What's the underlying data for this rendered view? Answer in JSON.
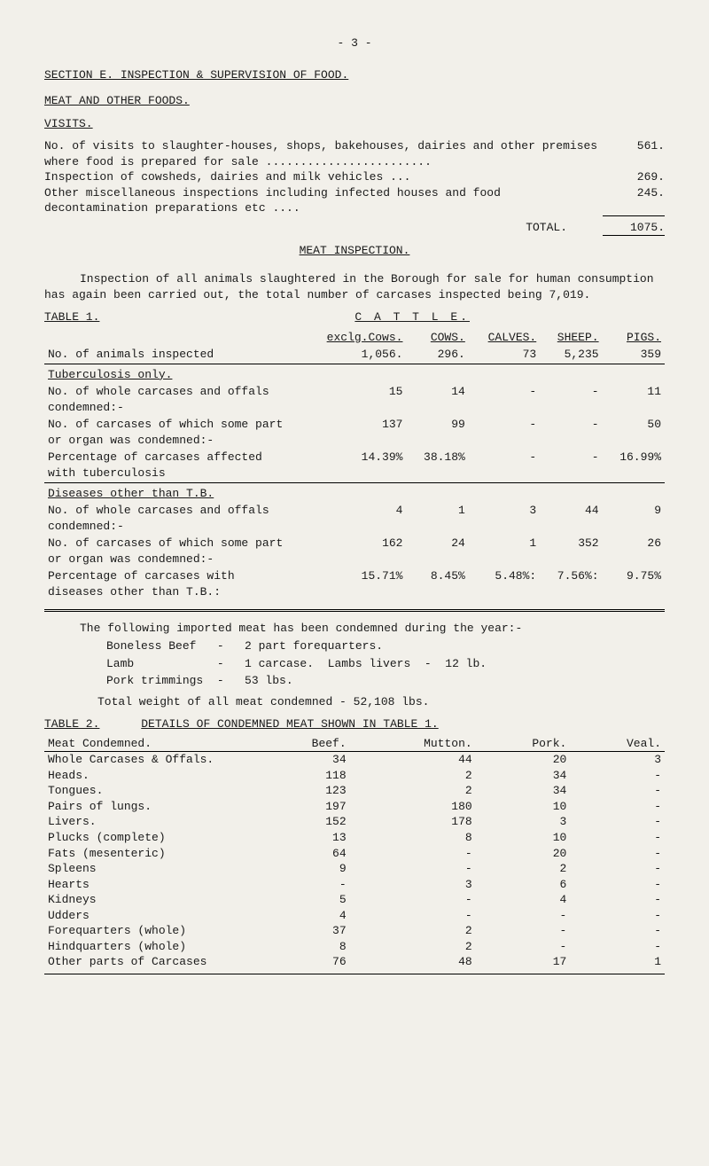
{
  "page_number_line": "- 3 -",
  "section_e_title": "SECTION E.  INSPECTION & SUPERVISION OF FOOD.",
  "meat_foods_title": "MEAT AND OTHER FOODS.",
  "visits_title": "VISITS.",
  "visits_para1": "No. of visits to slaughter-houses, shops, bakehouses, dairies and other premises where food is prepared for sale ........................",
  "visits_val1": "561.",
  "visits_para2": "Inspection of cowsheds, dairies and milk vehicles ...",
  "visits_val2": "269.",
  "visits_para3": "Other miscellaneous inspections including infected houses and food decontamination preparations etc ....",
  "visits_val3": "245.",
  "visits_total_label": "TOTAL.",
  "visits_total_val": "1075.",
  "meat_inspection_title": "MEAT  INSPECTION.",
  "meat_insp_para": "Inspection of all animals slaughtered in the Borough for sale for human consumption has again been carried out, the total number of carcases inspected being 7,019.",
  "table1_label": "TABLE 1.",
  "cattle_label": "C A T T L E.",
  "t1_head": {
    "exclg": "exclg.Cows.",
    "cows": "COWS.",
    "calves": "CALVES.",
    "sheep": "SHEEP.",
    "pigs": "PIGS."
  },
  "t1_row_inspected": {
    "label": "No. of animals inspected",
    "c1": "1,056.",
    "c2": "296.",
    "c3": "73",
    "c4": "5,235",
    "c5": "359"
  },
  "t1_tb_only": "Tuberculosis only.",
  "t1_r1": {
    "label": "No. of whole carcases and offals condemned:-",
    "c1": "15",
    "c2": "14",
    "c3": "-",
    "c4": "-",
    "c5": "11"
  },
  "t1_r2": {
    "label": "No. of carcases of which some part or organ was condemned:-",
    "c1": "137",
    "c2": "99",
    "c3": "-",
    "c4": "-",
    "c5": "50"
  },
  "t1_r3": {
    "label": "Percentage of carcases affected with tuberculosis",
    "c1": "14.39%",
    "c2": "38.18%",
    "c3": "-",
    "c4": "-",
    "c5": "16.99%"
  },
  "t1_dis_other": "Diseases other than T.B.",
  "t1_r4": {
    "label": "No. of whole carcases and offals condemned:-",
    "c1": "4",
    "c2": "1",
    "c3": "3",
    "c4": "44",
    "c5": "9"
  },
  "t1_r5": {
    "label": "No. of carcases of which some part or organ was condemned:-",
    "c1": "162",
    "c2": "24",
    "c3": "1",
    "c4": "352",
    "c5": "26"
  },
  "t1_r6": {
    "label": "Percentage of carcases with diseases other than T.B.:",
    "c1": "15.71%",
    "c2": "8.45%",
    "c3": "5.48%:",
    "c4": "7.56%:",
    "c5": "9.75%"
  },
  "import_para": "The following imported meat has been condemned during the year:-",
  "import_l1": "Boneless Beef   -   2 part forequarters.",
  "import_l2": "Lamb            -   1 carcase.  Lambs livers  -  12 lb.",
  "import_l3": "Pork trimmings  -   53 lbs.",
  "import_total": "Total weight of all meat condemned  -  52,108 lbs.",
  "table2_label": "TABLE 2.",
  "table2_title": "DETAILS OF CONDEMNED MEAT SHOWN IN TABLE 1.",
  "t2_head": {
    "c0": "Meat Condemned.",
    "c1": "Beef.",
    "c2": "Mutton.",
    "c3": "Pork.",
    "c4": "Veal."
  },
  "t2_rows": [
    {
      "l": "Whole Carcases & Offals.",
      "b": "34",
      "m": "44",
      "p": "20",
      "v": "3"
    },
    {
      "l": "Heads.",
      "b": "118",
      "m": "2",
      "p": "34",
      "v": "-"
    },
    {
      "l": "Tongues.",
      "b": "123",
      "m": "2",
      "p": "34",
      "v": "-"
    },
    {
      "l": "Pairs of lungs.",
      "b": "197",
      "m": "180",
      "p": "10",
      "v": "-"
    },
    {
      "l": "Livers.",
      "b": "152",
      "m": "178",
      "p": "3",
      "v": "-"
    },
    {
      "l": "Plucks (complete)",
      "b": "13",
      "m": "8",
      "p": "10",
      "v": "-"
    },
    {
      "l": "Fats (mesenteric)",
      "b": "64",
      "m": "-",
      "p": "20",
      "v": "-"
    },
    {
      "l": "Spleens",
      "b": "9",
      "m": "-",
      "p": "2",
      "v": "-"
    },
    {
      "l": "Hearts",
      "b": "-",
      "m": "3",
      "p": "6",
      "v": "-"
    },
    {
      "l": "Kidneys",
      "b": "5",
      "m": "-",
      "p": "4",
      "v": "-"
    },
    {
      "l": "Udders",
      "b": "4",
      "m": "-",
      "p": "-",
      "v": "-"
    },
    {
      "l": "Forequarters (whole)",
      "b": "37",
      "m": "2",
      "p": "-",
      "v": "-"
    },
    {
      "l": "Hindquarters (whole)",
      "b": "8",
      "m": "2",
      "p": "-",
      "v": "-"
    },
    {
      "l": "Other parts of Carcases",
      "b": "76",
      "m": "48",
      "p": "17",
      "v": "1"
    }
  ]
}
